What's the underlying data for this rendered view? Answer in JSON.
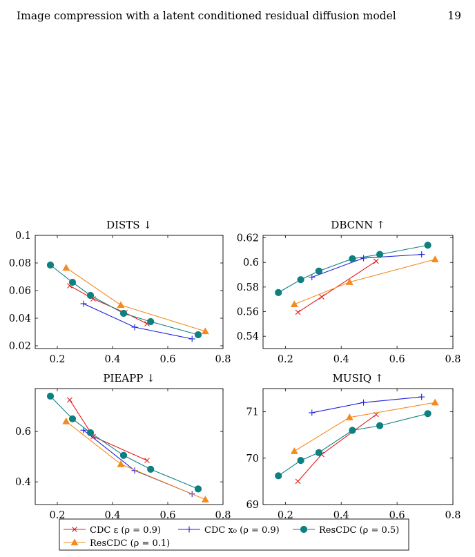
{
  "page": {
    "running_title": "Image compression with a latent conditioned residual diffusion model",
    "page_number": "19"
  },
  "legend": {
    "entries": [
      {
        "label": "CDC ε (ρ = 0.9)",
        "color": "#e41a1c",
        "marker": "x"
      },
      {
        "label": "CDC x₀ (ρ = 0.9)",
        "color": "#1f1fdc",
        "marker": "plus"
      },
      {
        "label": "ResCDC (ρ = 0.5)",
        "color": "#0f7f7f",
        "marker": "circle"
      },
      {
        "label": "ResCDC (ρ = 0.1)",
        "color": "#f58a1f",
        "marker": "triangle"
      }
    ]
  },
  "chart_data": [
    {
      "type": "line",
      "title": "DISTS ↓",
      "xlim": [
        0.12,
        0.8
      ],
      "ylim": [
        0.018,
        0.1
      ],
      "xticks": [
        "0.2",
        "0.4",
        "0.6",
        "0.8"
      ],
      "xtick_values": [
        0.2,
        0.4,
        0.6,
        0.8
      ],
      "yticks": [
        "0.02",
        "0.04",
        "0.06",
        "0.08",
        "0.1"
      ],
      "ytick_values": [
        0.02,
        0.04,
        0.06,
        0.08,
        0.1
      ],
      "series": [
        {
          "name": "CDC ε (ρ = 0.9)",
          "x": [
            0.245,
            0.33,
            0.445,
            0.525
          ],
          "y": [
            0.0635,
            0.054,
            0.044,
            0.036
          ]
        },
        {
          "name": "CDC x₀ (ρ = 0.9)",
          "x": [
            0.295,
            0.48,
            0.688
          ],
          "y": [
            0.0505,
            0.0335,
            0.025
          ]
        },
        {
          "name": "ResCDC (ρ = 0.5)",
          "x": [
            0.175,
            0.255,
            0.32,
            0.44,
            0.538,
            0.71
          ],
          "y": [
            0.0785,
            0.066,
            0.0565,
            0.0435,
            0.0375,
            0.028
          ]
        },
        {
          "name": "ResCDC (ρ = 0.1)",
          "x": [
            0.232,
            0.43,
            0.736
          ],
          "y": [
            0.0765,
            0.0495,
            0.0305
          ]
        }
      ]
    },
    {
      "type": "line",
      "title": "DBCNN ↑",
      "xlim": [
        0.12,
        0.8
      ],
      "ylim": [
        0.53,
        0.622
      ],
      "xticks": [
        "0.2",
        "0.4",
        "0.6",
        "0.8"
      ],
      "xtick_values": [
        0.2,
        0.4,
        0.6,
        0.8
      ],
      "yticks": [
        "0.54",
        "0.56",
        "0.58",
        "0.6",
        "0.62"
      ],
      "ytick_values": [
        0.54,
        0.56,
        0.58,
        0.6,
        0.62
      ],
      "series": [
        {
          "name": "CDC ε (ρ = 0.9)",
          "x": [
            0.245,
            0.33,
            0.525
          ],
          "y": [
            0.5595,
            0.572,
            0.601
          ]
        },
        {
          "name": "CDC x₀ (ρ = 0.9)",
          "x": [
            0.295,
            0.48,
            0.688
          ],
          "y": [
            0.588,
            0.6035,
            0.6065
          ]
        },
        {
          "name": "ResCDC (ρ = 0.5)",
          "x": [
            0.175,
            0.255,
            0.32,
            0.44,
            0.538,
            0.71
          ],
          "y": [
            0.5755,
            0.586,
            0.593,
            0.603,
            0.6065,
            0.614
          ]
        },
        {
          "name": "ResCDC (ρ = 0.1)",
          "x": [
            0.232,
            0.43,
            0.736
          ],
          "y": [
            0.566,
            0.584,
            0.6025
          ]
        }
      ]
    },
    {
      "type": "line",
      "title": "PIEAPP ↓",
      "xlim": [
        0.12,
        0.8
      ],
      "ylim": [
        0.31,
        0.77
      ],
      "xticks": [
        "0.2",
        "0.4",
        "0.6",
        "0.8"
      ],
      "xtick_values": [
        0.2,
        0.4,
        0.6,
        0.8
      ],
      "yticks": [
        "0.4",
        "0.6"
      ],
      "ytick_values": [
        0.4,
        0.6
      ],
      "series": [
        {
          "name": "CDC ε (ρ = 0.9)",
          "x": [
            0.245,
            0.33,
            0.525
          ],
          "y": [
            0.725,
            0.58,
            0.485
          ]
        },
        {
          "name": "CDC x₀ (ρ = 0.9)",
          "x": [
            0.295,
            0.48,
            0.688
          ],
          "y": [
            0.605,
            0.445,
            0.352
          ]
        },
        {
          "name": "ResCDC (ρ = 0.5)",
          "x": [
            0.175,
            0.255,
            0.32,
            0.44,
            0.538,
            0.71
          ],
          "y": [
            0.74,
            0.65,
            0.595,
            0.505,
            0.45,
            0.372
          ]
        },
        {
          "name": "ResCDC (ρ = 0.1)",
          "x": [
            0.232,
            0.43,
            0.736
          ],
          "y": [
            0.64,
            0.47,
            0.33
          ]
        }
      ]
    },
    {
      "type": "line",
      "title": "MUSIQ ↑",
      "xlim": [
        0.12,
        0.8
      ],
      "ylim": [
        69,
        71.5
      ],
      "xticks": [
        "0.2",
        "0.4",
        "0.6",
        "0.8"
      ],
      "xtick_values": [
        0.2,
        0.4,
        0.6,
        0.8
      ],
      "yticks": [
        "69",
        "70",
        "71"
      ],
      "ytick_values": [
        69,
        70,
        71
      ],
      "series": [
        {
          "name": "CDC ε (ρ = 0.9)",
          "x": [
            0.245,
            0.33,
            0.525
          ],
          "y": [
            69.5,
            70.08,
            70.94
          ]
        },
        {
          "name": "CDC x₀ (ρ = 0.9)",
          "x": [
            0.295,
            0.48,
            0.688
          ],
          "y": [
            70.98,
            71.2,
            71.32
          ]
        },
        {
          "name": "ResCDC (ρ = 0.5)",
          "x": [
            0.175,
            0.255,
            0.32,
            0.44,
            0.538,
            0.71
          ],
          "y": [
            69.62,
            69.95,
            70.12,
            70.6,
            70.7,
            70.96
          ]
        },
        {
          "name": "ResCDC (ρ = 0.1)",
          "x": [
            0.232,
            0.43,
            0.736
          ],
          "y": [
            70.15,
            70.88,
            71.2
          ]
        }
      ]
    }
  ]
}
